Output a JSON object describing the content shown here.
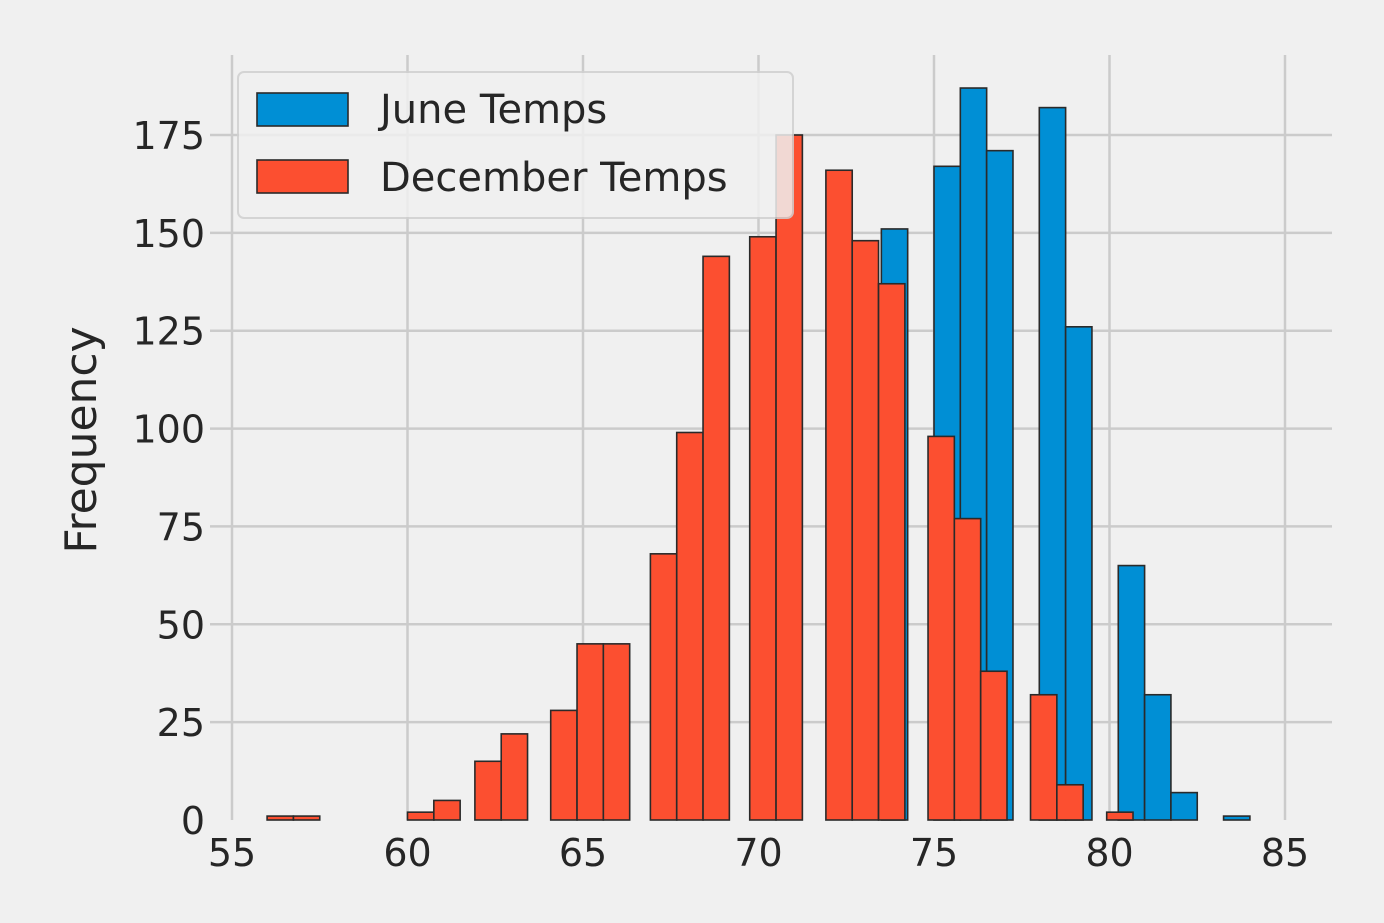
{
  "chart_data": {
    "type": "bar",
    "title": "",
    "xlabel": "",
    "ylabel": "Frequency",
    "xlim": [
      55,
      86.5
    ],
    "ylim": [
      0,
      195
    ],
    "xticks": [
      55,
      60,
      65,
      70,
      75,
      80,
      85
    ],
    "yticks": [
      0,
      25,
      50,
      75,
      100,
      125,
      150,
      175
    ],
    "grid": true,
    "legend_position": "top-left",
    "colors": {
      "june": "#008fd5",
      "december": "#fc4f30",
      "background": "#f0f0f0",
      "grid": "#cbcbcb"
    },
    "series": [
      {
        "name": "June Temps",
        "bins": [
          {
            "x0": 75.0,
            "x1": 75.75,
            "value": 167
          },
          {
            "x0": 75.75,
            "x1": 76.5,
            "value": 187
          },
          {
            "x0": 76.5,
            "x1": 77.25,
            "value": 171
          },
          {
            "x0": 77.25,
            "x1": 78.0,
            "value": 0
          },
          {
            "x0": 78.0,
            "x1": 78.75,
            "value": 182
          },
          {
            "x0": 78.75,
            "x1": 79.5,
            "value": 126
          },
          {
            "x0": 79.5,
            "x1": 80.25,
            "value": 0
          },
          {
            "x0": 80.25,
            "x1": 81.0,
            "value": 65
          },
          {
            "x0": 81.0,
            "x1": 81.75,
            "value": 32
          },
          {
            "x0": 81.75,
            "x1": 82.5,
            "value": 7
          },
          {
            "x0": 82.5,
            "x1": 83.25,
            "value": 0
          },
          {
            "x0": 83.25,
            "x1": 84.0,
            "value": 1
          },
          {
            "x0": 73.5,
            "x1": 74.25,
            "value": 151
          }
        ]
      },
      {
        "name": "December Temps",
        "bins": [
          {
            "x0": 56.0,
            "x1": 56.75,
            "value": 1
          },
          {
            "x0": 56.75,
            "x1": 57.5,
            "value": 1
          },
          {
            "x0": 60.0,
            "x1": 60.75,
            "value": 2
          },
          {
            "x0": 60.75,
            "x1": 61.5,
            "value": 5
          },
          {
            "x0": 61.92,
            "x1": 62.67,
            "value": 15
          },
          {
            "x0": 62.67,
            "x1": 63.42,
            "value": 22
          },
          {
            "x0": 64.08,
            "x1": 64.83,
            "value": 28
          },
          {
            "x0": 64.83,
            "x1": 65.58,
            "value": 45
          },
          {
            "x0": 65.58,
            "x1": 66.33,
            "value": 45
          },
          {
            "x0": 66.92,
            "x1": 67.67,
            "value": 68
          },
          {
            "x0": 67.67,
            "x1": 68.42,
            "value": 99
          },
          {
            "x0": 68.42,
            "x1": 69.17,
            "value": 144
          },
          {
            "x0": 69.75,
            "x1": 70.5,
            "value": 149
          },
          {
            "x0": 70.5,
            "x1": 71.25,
            "value": 175
          },
          {
            "x0": 71.92,
            "x1": 72.67,
            "value": 166
          },
          {
            "x0": 72.67,
            "x1": 73.42,
            "value": 148
          },
          {
            "x0": 73.42,
            "x1": 74.17,
            "value": 137
          },
          {
            "x0": 74.83,
            "x1": 75.58,
            "value": 98
          },
          {
            "x0": 75.58,
            "x1": 76.33,
            "value": 77
          },
          {
            "x0": 76.33,
            "x1": 77.08,
            "value": 38
          },
          {
            "x0": 77.75,
            "x1": 78.5,
            "value": 32
          },
          {
            "x0": 78.5,
            "x1": 79.25,
            "value": 9
          },
          {
            "x0": 79.92,
            "x1": 80.67,
            "value": 2
          },
          {
            "x0": 80.67,
            "x1": 81.42,
            "value": 0
          }
        ]
      }
    ]
  }
}
